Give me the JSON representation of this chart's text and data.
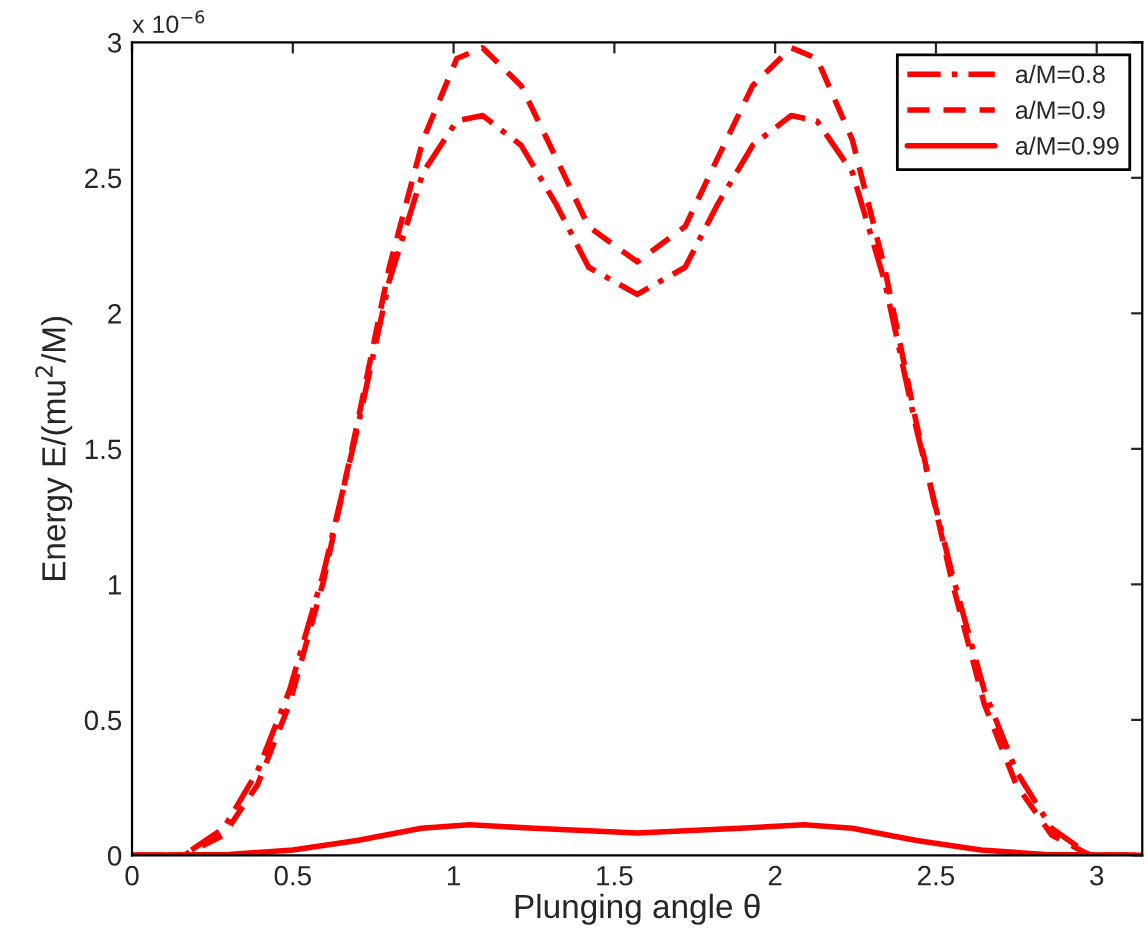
{
  "chart_data": {
    "type": "line",
    "xlabel": "Plunging angle θ",
    "ylabel": "Energy E/(mu$^{2}$/M)",
    "annotations": [
      "x 10$^{−6}$"
    ],
    "xlim": [
      0,
      3.1416
    ],
    "ylim": [
      0,
      3
    ],
    "xticks": [
      0,
      0.5,
      1,
      1.5,
      2,
      2.5,
      3
    ],
    "yticks": [
      0,
      0.5,
      1,
      1.5,
      2,
      2.5,
      3
    ],
    "grid": false,
    "legend": "top right",
    "marker": "none",
    "series": [
      {
        "name": "a/M=0.8",
        "color": "#ff0000",
        "line_style": "dashdot",
        "x": [
          0,
          0.16,
          0.285,
          0.39,
          0.49,
          0.595,
          0.7,
          0.8,
          0.905,
          1.01,
          1.09,
          1.21,
          1.32,
          1.42,
          1.571,
          1.72,
          1.82,
          1.93,
          2.05,
          2.13,
          2.24,
          2.34,
          2.44,
          2.55,
          2.65,
          2.75,
          2.86,
          2.98,
          3.1416
        ],
        "values": [
          0,
          0,
          0.1,
          0.31,
          0.61,
          1.04,
          1.57,
          2.12,
          2.52,
          2.71,
          2.73,
          2.62,
          2.4,
          2.17,
          2.07,
          2.17,
          2.4,
          2.62,
          2.73,
          2.71,
          2.52,
          2.12,
          1.57,
          1.04,
          0.61,
          0.31,
          0.1,
          0,
          0
        ]
      },
      {
        "name": "a/M=0.9",
        "color": "#ff0000",
        "line_style": "dashed",
        "x": [
          0,
          0.16,
          0.285,
          0.39,
          0.49,
          0.595,
          0.7,
          0.8,
          0.905,
          1.01,
          1.09,
          1.21,
          1.32,
          1.42,
          1.571,
          1.72,
          1.82,
          1.93,
          2.05,
          2.13,
          2.24,
          2.34,
          2.44,
          2.55,
          2.65,
          2.75,
          2.86,
          2.98,
          3.1416
        ],
        "values": [
          0,
          0,
          0.075,
          0.26,
          0.56,
          1.01,
          1.59,
          2.17,
          2.64,
          2.94,
          2.98,
          2.84,
          2.57,
          2.32,
          2.19,
          2.32,
          2.57,
          2.84,
          2.98,
          2.94,
          2.64,
          2.17,
          1.59,
          1.01,
          0.56,
          0.26,
          0.075,
          0,
          0
        ]
      },
      {
        "name": "a/M=0.99",
        "color": "#ff0000",
        "line_style": "solid",
        "x": [
          0,
          0.3,
          0.5,
          0.7,
          0.9,
          1.05,
          1.25,
          1.571,
          1.89,
          2.09,
          2.24,
          2.44,
          2.64,
          2.84,
          3.1416
        ],
        "values": [
          0,
          0.003,
          0.02,
          0.055,
          0.1,
          0.113,
          0.1,
          0.083,
          0.1,
          0.113,
          0.1,
          0.055,
          0.02,
          0.003,
          0
        ]
      }
    ]
  }
}
